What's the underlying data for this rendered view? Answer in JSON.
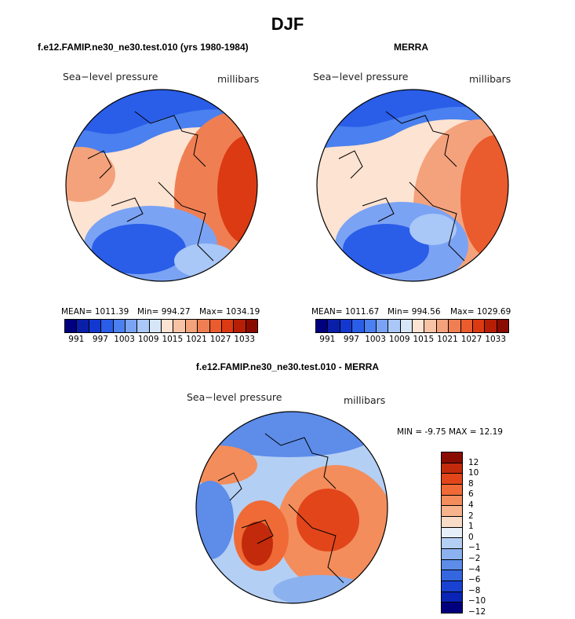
{
  "figure_title": "DJF",
  "panels": {
    "model": {
      "title": "f.e12.FAMIP.ne30_ne30.test.010 (yrs 1980-1984)",
      "variable": "Sea−level pressure",
      "units": "millibars",
      "stats": {
        "mean": "MEAN=  1011.39",
        "min": "Min=  994.27",
        "max": "Max=  1034.19"
      }
    },
    "obs": {
      "title": "MERRA",
      "variable": "Sea−level pressure",
      "units": "millibars",
      "stats": {
        "mean": "MEAN=  1011.67",
        "min": "Min=  994.56",
        "max": "Max=  1029.69"
      }
    },
    "diff": {
      "title": "f.e12.FAMIP.ne30_ne30.test.010 - MERRA",
      "variable": "Sea−level pressure",
      "units": "millibars",
      "minmax": "MIN =   -9.75 MAX =   12.19"
    }
  },
  "colorbar_abs": {
    "colors": [
      "#00007f",
      "#0a1fa8",
      "#1338d0",
      "#2a5de8",
      "#4a80ef",
      "#7ba3f4",
      "#a9c7f7",
      "#d6e6f8",
      "#fde3d1",
      "#f8c3a5",
      "#f4a27c",
      "#ef7f52",
      "#ea5b2d",
      "#dc3a12",
      "#b71e06",
      "#8a0b00"
    ],
    "labels": [
      "991",
      "997",
      "1003",
      "1009",
      "1015",
      "1021",
      "1027",
      "1033"
    ]
  },
  "colorbar_diff": {
    "colors": [
      "#8a0b00",
      "#c32a0b",
      "#e2451a",
      "#ef6a36",
      "#f38d5c",
      "#f6b38c",
      "#f9dcc7",
      "#e6eef9",
      "#b4cff4",
      "#8cb1ef",
      "#5d8ce9",
      "#3466e0",
      "#1a42d2",
      "#0a24b5",
      "#00007f"
    ],
    "labels": [
      "12",
      "10",
      "8",
      "6",
      "4",
      "2",
      "1",
      "0",
      "−1",
      "−2",
      "−4",
      "−6",
      "−8",
      "−10",
      "−12"
    ]
  }
}
